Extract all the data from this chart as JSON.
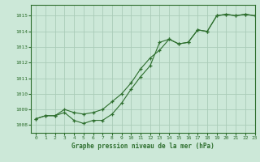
{
  "background_color": "#cce8d8",
  "grid_color": "#aaccb8",
  "line_color": "#2d6e2d",
  "marker_color": "#2d6e2d",
  "xlabel": "Graphe pression niveau de la mer (hPa)",
  "xlim": [
    -0.5,
    23
  ],
  "ylim": [
    1007.5,
    1015.7
  ],
  "yticks": [
    1008,
    1009,
    1010,
    1011,
    1012,
    1013,
    1014,
    1015
  ],
  "xticks": [
    0,
    1,
    2,
    3,
    4,
    5,
    6,
    7,
    8,
    9,
    10,
    11,
    12,
    13,
    14,
    15,
    16,
    17,
    18,
    19,
    20,
    21,
    22,
    23
  ],
  "series1_x": [
    0,
    1,
    2,
    3,
    4,
    5,
    6,
    7,
    8,
    9,
    10,
    11,
    12,
    13,
    14,
    15,
    16,
    17,
    18,
    19,
    20,
    21,
    22,
    23
  ],
  "series1_y": [
    1008.4,
    1008.6,
    1008.6,
    1008.8,
    1008.3,
    1008.1,
    1008.3,
    1008.3,
    1008.7,
    1009.4,
    1010.3,
    1011.1,
    1011.8,
    1013.3,
    1013.5,
    1013.2,
    1013.3,
    1014.1,
    1014.0,
    1015.0,
    1015.1,
    1015.0,
    1015.1,
    1015.0
  ],
  "series2_x": [
    0,
    1,
    2,
    3,
    4,
    5,
    6,
    7,
    8,
    9,
    10,
    11,
    12,
    13,
    14,
    15,
    16,
    17,
    18,
    19,
    20,
    21,
    22,
    23
  ],
  "series2_y": [
    1008.4,
    1008.6,
    1008.6,
    1009.0,
    1008.8,
    1008.7,
    1008.8,
    1009.0,
    1009.5,
    1010.0,
    1010.7,
    1011.6,
    1012.3,
    1012.8,
    1013.5,
    1013.2,
    1013.3,
    1014.1,
    1014.0,
    1015.0,
    1015.1,
    1015.0,
    1015.1,
    1015.0
  ]
}
